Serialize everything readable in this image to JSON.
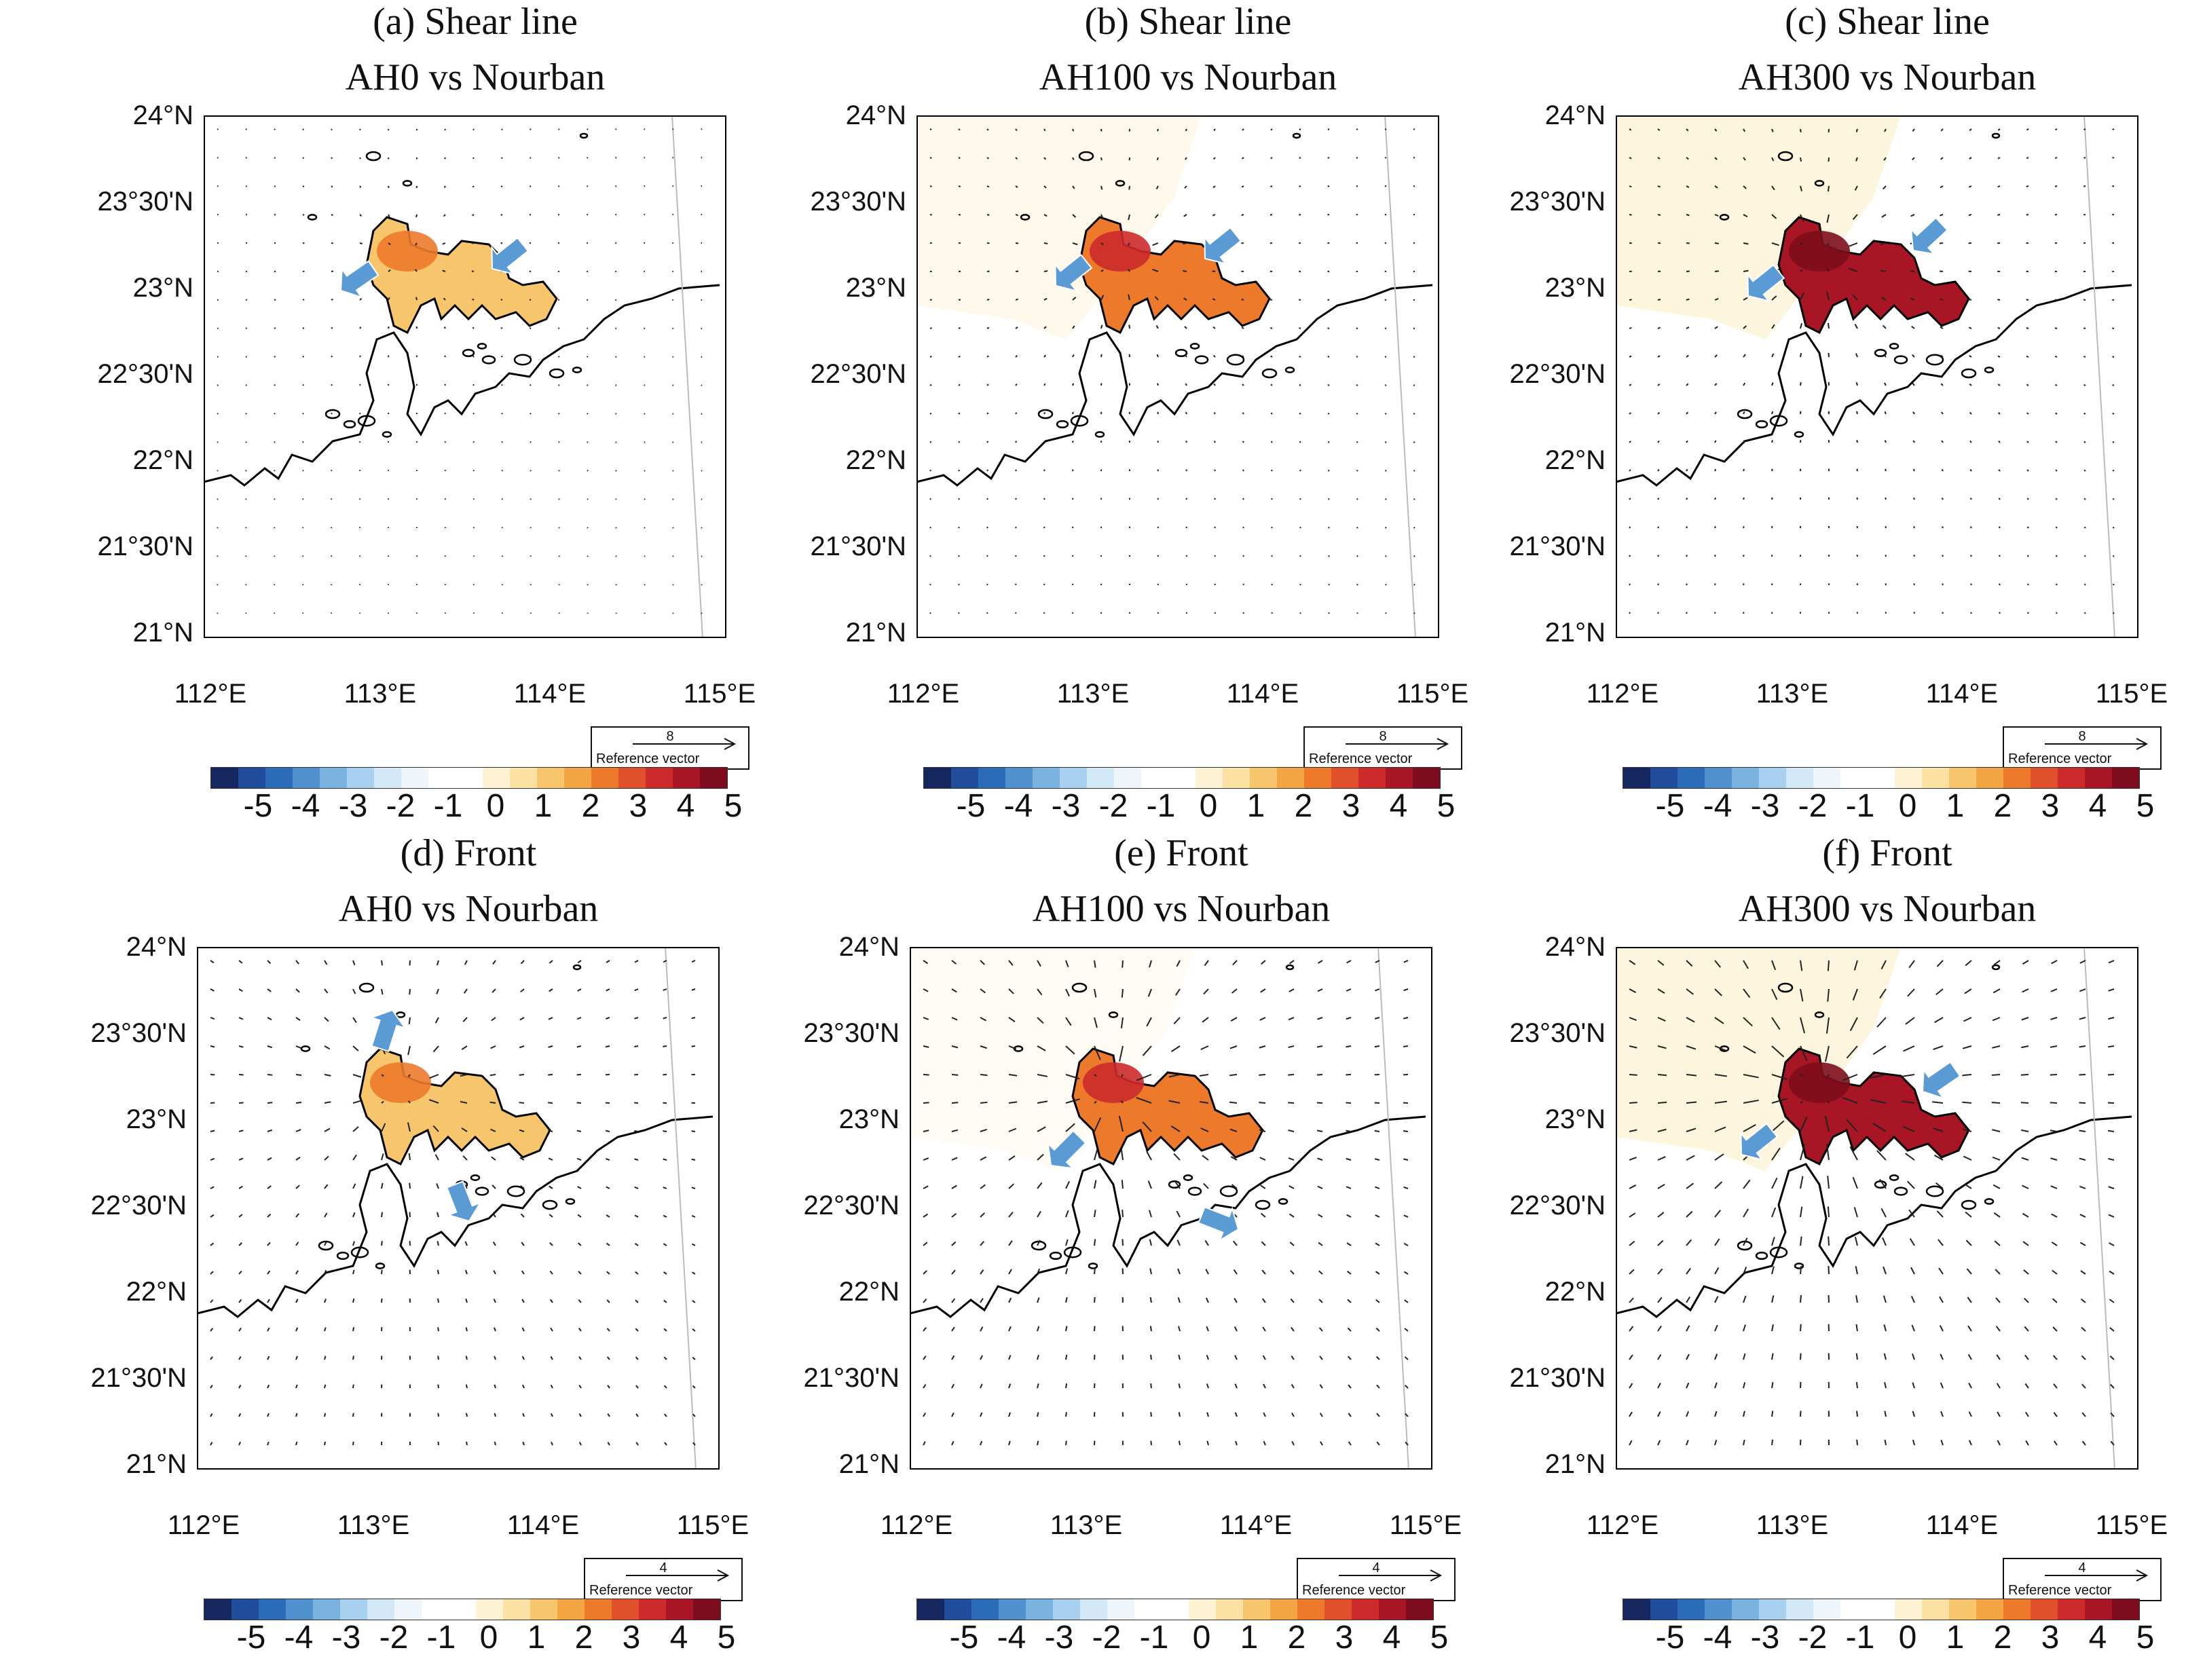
{
  "colorbar": {
    "labels": [
      "-5",
      "-4",
      "-3",
      "-2",
      "-1",
      "0",
      "1",
      "2",
      "3",
      "4",
      "5"
    ],
    "colors": [
      "#16265e",
      "#1f4c9b",
      "#2b6cb8",
      "#4f90cf",
      "#7ab3e0",
      "#a8d1ef",
      "#d3e8f6",
      "#eef6fb",
      "#ffffff",
      "#ffffff",
      "#fdf2d4",
      "#fbe2a4",
      "#f7c56b",
      "#f3a443",
      "#ec7a2a",
      "#e0502b",
      "#cc2a2b",
      "#a81626",
      "#7d0d1c"
    ]
  },
  "axes": {
    "lat_labels": [
      "24°N",
      "23°30'N",
      "23°N",
      "22°30'N",
      "22°N",
      "21°30'N",
      "21°N"
    ],
    "lon_labels": [
      "112°E",
      "113°E",
      "114°E",
      "115°E"
    ],
    "reference_text": "Reference vector"
  },
  "panels": [
    {
      "title1": "(a) Shear line",
      "title2": "AH0 vs Nourban",
      "ref_value": "8",
      "intensity": 0.25,
      "spread": 0.05,
      "mode": "shear",
      "arrows": [
        [
          250,
          225,
          -0.8,
          0.55
        ],
        [
          470,
          190,
          -0.75,
          0.6
        ]
      ]
    },
    {
      "title1": "(b) Shear line",
      "title2": "AH100 vs Nourban",
      "ref_value": "8",
      "intensity": 0.55,
      "spread": 0.35,
      "mode": "shear",
      "arrows": [
        [
          250,
          215,
          -0.75,
          0.6
        ],
        [
          470,
          175,
          -0.75,
          0.6
        ]
      ]
    },
    {
      "title1": "(c) Shear line",
      "title2": "AH300 vs Nourban",
      "ref_value": "8",
      "intensity": 0.85,
      "spread": 0.55,
      "mode": "shear",
      "arrows": [
        [
          240,
          230,
          -0.75,
          0.6
        ],
        [
          480,
          160,
          -0.7,
          0.65
        ]
      ]
    },
    {
      "title1": "(d) Front",
      "title2": "AH0 vs Nourban",
      "ref_value": "4",
      "intensity": 0.25,
      "spread": 0.1,
      "mode": "front",
      "arrows": [
        [
          270,
          150,
          0.3,
          -0.95
        ],
        [
          380,
          350,
          0.35,
          0.9
        ]
      ]
    },
    {
      "title1": "(e) Front",
      "title2": "AH100 vs Nourban",
      "ref_value": "4",
      "intensity": 0.5,
      "spread": 0.15,
      "mode": "front",
      "arrows": [
        [
          250,
          280,
          -0.7,
          0.7
        ],
        [
          430,
          395,
          0.9,
          0.35
        ]
      ]
    },
    {
      "title1": "(f) Front",
      "title2": "AH300 vs Nourban",
      "ref_value": "4",
      "intensity": 0.85,
      "spread": 0.55,
      "mode": "front",
      "arrows": [
        [
          230,
          270,
          -0.75,
          0.6
        ],
        [
          500,
          180,
          -0.8,
          0.55
        ]
      ]
    }
  ]
}
